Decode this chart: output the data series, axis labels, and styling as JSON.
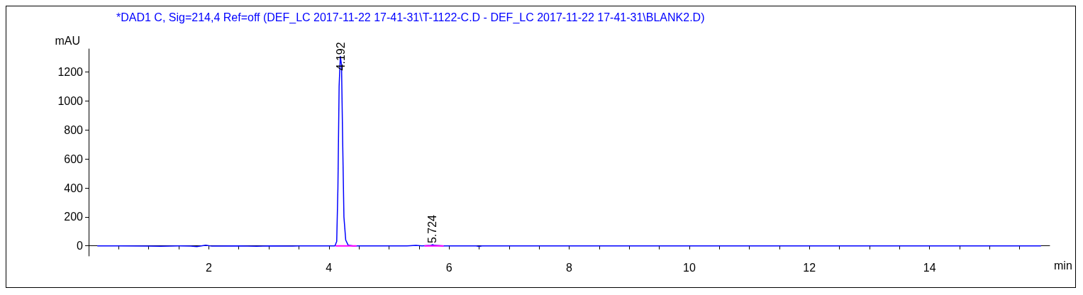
{
  "chart_data": {
    "type": "line",
    "title": "*DAD1 C, Sig=214,4 Ref=off (DEF_LC 2017-11-22 17-41-31\\T-1122-C.D - DEF_LC 2017-11-22 17-41-31\\BLANK2.D)",
    "xlabel": "min",
    "ylabel": "mAU",
    "xlim": [
      0,
      16
    ],
    "ylim": [
      -70,
      1360
    ],
    "xticks": [
      {
        "value": 0.5,
        "label": null
      },
      {
        "value": 1,
        "label": null
      },
      {
        "value": 1.5,
        "label": null
      },
      2,
      {
        "value": 2.5,
        "label": null
      },
      {
        "value": 3,
        "label": null
      },
      {
        "value": 3.5,
        "label": null
      },
      4,
      {
        "value": 4.5,
        "label": null
      },
      {
        "value": 5,
        "label": null
      },
      {
        "value": 5.5,
        "label": null
      },
      6,
      {
        "value": 6.5,
        "label": null
      },
      {
        "value": 7,
        "label": null
      },
      {
        "value": 7.5,
        "label": null
      },
      8,
      {
        "value": 8.5,
        "label": null
      },
      {
        "value": 9,
        "label": null
      },
      {
        "value": 9.5,
        "label": null
      },
      10,
      {
        "value": 10.5,
        "label": null
      },
      {
        "value": 11,
        "label": null
      },
      {
        "value": 11.5,
        "label": null
      },
      12,
      {
        "value": 12.5,
        "label": null
      },
      {
        "value": 13,
        "label": null
      },
      {
        "value": 13.5,
        "label": null
      },
      14,
      {
        "value": 14.5,
        "label": null
      },
      {
        "value": 15,
        "label": null
      },
      {
        "value": 15.5,
        "label": null
      }
    ],
    "yticks": [
      0,
      200,
      400,
      600,
      800,
      1000,
      1200
    ],
    "grid": false,
    "marker": "none",
    "line_style": "solid",
    "series": [
      {
        "color": "#0000ff",
        "x": [
          0.15,
          0.5,
          1.0,
          1.2,
          1.5,
          1.7,
          1.8,
          1.95,
          2.05,
          2.5,
          2.8,
          3.0,
          3.4,
          3.5,
          4.1,
          4.13,
          4.15,
          4.17,
          4.19,
          4.21,
          4.23,
          4.25,
          4.28,
          4.32,
          4.4,
          5.3,
          5.45,
          5.55,
          5.7,
          5.724,
          5.76,
          5.9,
          6.45,
          6.5,
          6.55,
          15.85
        ],
        "values": [
          0,
          0,
          -2,
          -3,
          0,
          -2,
          -5,
          5,
          -2,
          0,
          -3,
          0,
          -2,
          0,
          0,
          30,
          400,
          1100,
          1309,
          1250,
          700,
          200,
          40,
          5,
          0,
          0,
          3,
          0,
          4,
          8,
          3,
          0,
          0,
          -4,
          0,
          0
        ]
      },
      {
        "color": "#ff00ff",
        "x": [
          4.12,
          4.45,
          4.46,
          5.6,
          5.9
        ],
        "values": [
          0,
          0,
          null,
          0,
          0
        ]
      }
    ],
    "annotations": [
      {
        "text": "4.192",
        "x": 4.192,
        "y": 1309
      },
      {
        "text": "5.724",
        "x": 5.724,
        "y": 8
      }
    ]
  }
}
